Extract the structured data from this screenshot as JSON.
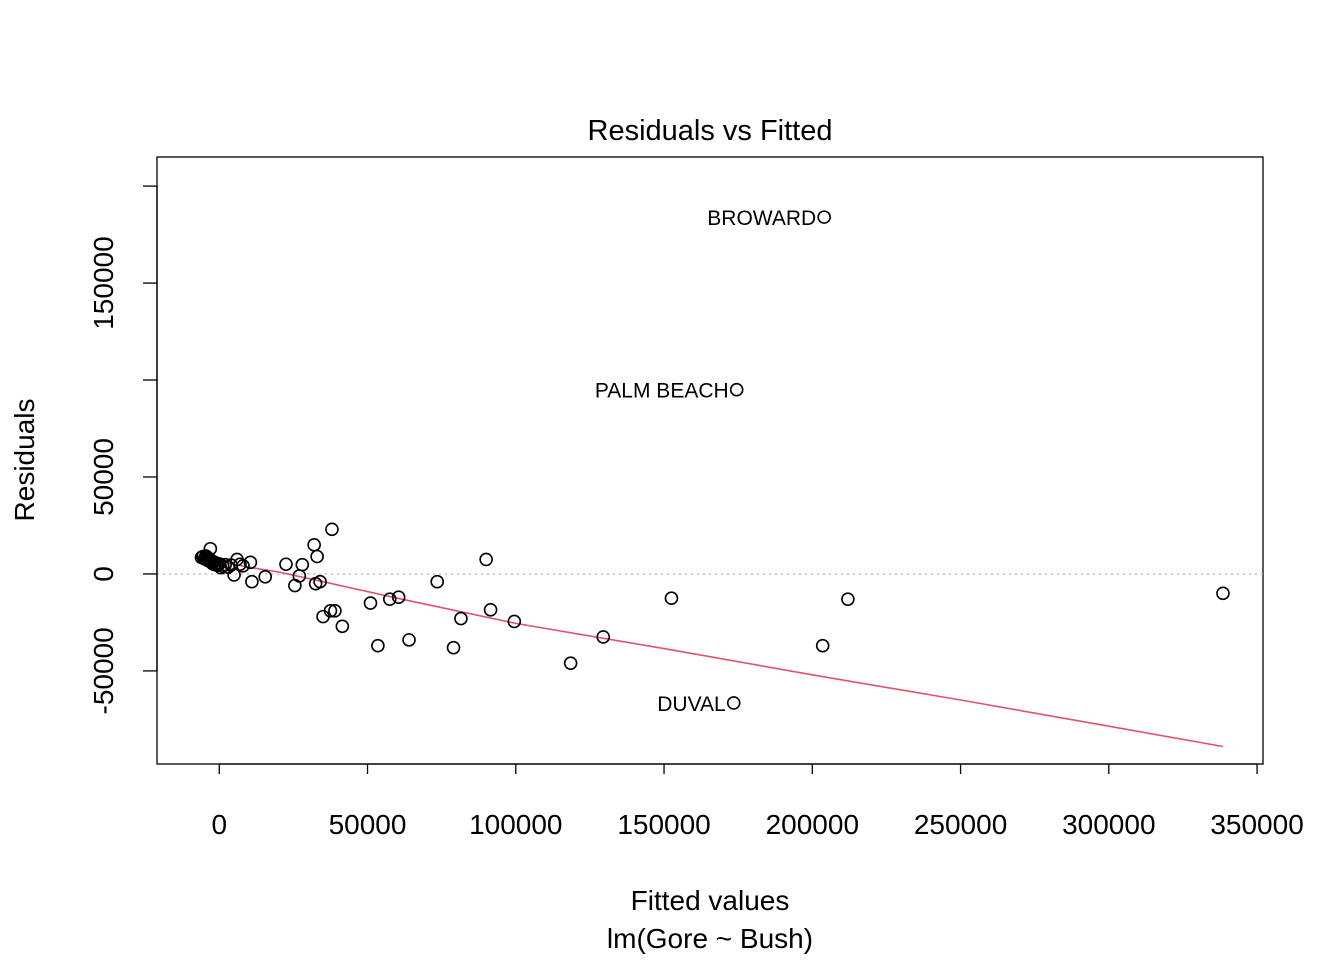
{
  "chart_data": {
    "type": "scatter",
    "title": "Residuals vs Fitted",
    "xlabel": "Fitted values",
    "subtitle": "lm(Gore ~ Bush)",
    "ylabel": "Residuals",
    "xlim": [
      -21000,
      352000
    ],
    "ylim": [
      -98000,
      215000
    ],
    "xticks": [
      0,
      50000,
      100000,
      150000,
      200000,
      250000,
      300000,
      350000
    ],
    "xtick_labels": [
      "0",
      "50000",
      "100000",
      "150000",
      "200000",
      "250000",
      "300000",
      "350000"
    ],
    "yticks": [
      -50000,
      0,
      50000,
      100000,
      150000,
      200000
    ],
    "ytick_labels": [
      "-50000",
      "0",
      "50000",
      "",
      "150000",
      ""
    ],
    "reference_line_y": 0,
    "points": [
      {
        "x": -6000,
        "y": 8500
      },
      {
        "x": -5500,
        "y": 9000
      },
      {
        "x": -5000,
        "y": 7800
      },
      {
        "x": -4800,
        "y": 8200
      },
      {
        "x": -4500,
        "y": 9200
      },
      {
        "x": -4200,
        "y": 7500
      },
      {
        "x": -4000,
        "y": 8600
      },
      {
        "x": -3800,
        "y": 6900
      },
      {
        "x": -3600,
        "y": 8000
      },
      {
        "x": -3400,
        "y": 7200
      },
      {
        "x": -3200,
        "y": 6500
      },
      {
        "x": -3000,
        "y": 13000
      },
      {
        "x": -2800,
        "y": 7000
      },
      {
        "x": -2500,
        "y": 6000
      },
      {
        "x": -2200,
        "y": 5200
      },
      {
        "x": -1800,
        "y": 6200
      },
      {
        "x": -1500,
        "y": 4800
      },
      {
        "x": -1000,
        "y": 5500
      },
      {
        "x": -500,
        "y": 4500
      },
      {
        "x": 0,
        "y": 5200
      },
      {
        "x": 500,
        "y": 3200
      },
      {
        "x": 1200,
        "y": 4000
      },
      {
        "x": 2000,
        "y": 4800
      },
      {
        "x": 3000,
        "y": 3500
      },
      {
        "x": 4000,
        "y": 4600
      },
      {
        "x": 5000,
        "y": -500
      },
      {
        "x": 6000,
        "y": 7500
      },
      {
        "x": 7000,
        "y": 5000
      },
      {
        "x": 8000,
        "y": 4200
      },
      {
        "x": 10500,
        "y": 6000
      },
      {
        "x": 11000,
        "y": -4000
      },
      {
        "x": 15500,
        "y": -1500
      },
      {
        "x": 22500,
        "y": 5000
      },
      {
        "x": 25500,
        "y": -6000
      },
      {
        "x": 27000,
        "y": -1000
      },
      {
        "x": 28000,
        "y": 4800
      },
      {
        "x": 32000,
        "y": 15000
      },
      {
        "x": 32500,
        "y": -5000
      },
      {
        "x": 33000,
        "y": 9000
      },
      {
        "x": 34000,
        "y": -4000
      },
      {
        "x": 35000,
        "y": -22000
      },
      {
        "x": 37500,
        "y": -19000
      },
      {
        "x": 38000,
        "y": 23000
      },
      {
        "x": 39000,
        "y": -19000
      },
      {
        "x": 41500,
        "y": -27000
      },
      {
        "x": 51000,
        "y": -15000
      },
      {
        "x": 53500,
        "y": -37000
      },
      {
        "x": 57500,
        "y": -13000
      },
      {
        "x": 60500,
        "y": -12000
      },
      {
        "x": 64000,
        "y": -34000
      },
      {
        "x": 73500,
        "y": -4000
      },
      {
        "x": 79000,
        "y": -38000
      },
      {
        "x": 81500,
        "y": -23000
      },
      {
        "x": 90000,
        "y": 7500
      },
      {
        "x": 91500,
        "y": -18500
      },
      {
        "x": 99500,
        "y": -24500
      },
      {
        "x": 118500,
        "y": -46000
      },
      {
        "x": 129500,
        "y": -32500
      },
      {
        "x": 152500,
        "y": -12500
      },
      {
        "x": 173500,
        "y": -66500
      },
      {
        "x": 174500,
        "y": 95000
      },
      {
        "x": 203500,
        "y": -37000
      },
      {
        "x": 204000,
        "y": 184000
      },
      {
        "x": 212000,
        "y": -13000
      },
      {
        "x": 338500,
        "y": -10000
      }
    ],
    "labeled_points": [
      {
        "label": "BROWARD",
        "x": 204000,
        "y": 184000
      },
      {
        "label": "PALM BEACH",
        "x": 174500,
        "y": 95000
      },
      {
        "label": "DUVAL",
        "x": 173500,
        "y": -66500
      }
    ],
    "smoother": {
      "x": [
        -6000,
        0,
        10000,
        20000,
        35000,
        60000,
        100000,
        150000,
        200000,
        250000,
        300000,
        338500
      ],
      "y": [
        8500,
        6500,
        3500,
        1000,
        -4000,
        -12500,
        -25500,
        -38500,
        -52000,
        -65000,
        -78500,
        -89000
      ]
    },
    "colors": {
      "points": "#000000",
      "smoother": "#DF536B",
      "reference_line": "#BEBEBE"
    }
  }
}
